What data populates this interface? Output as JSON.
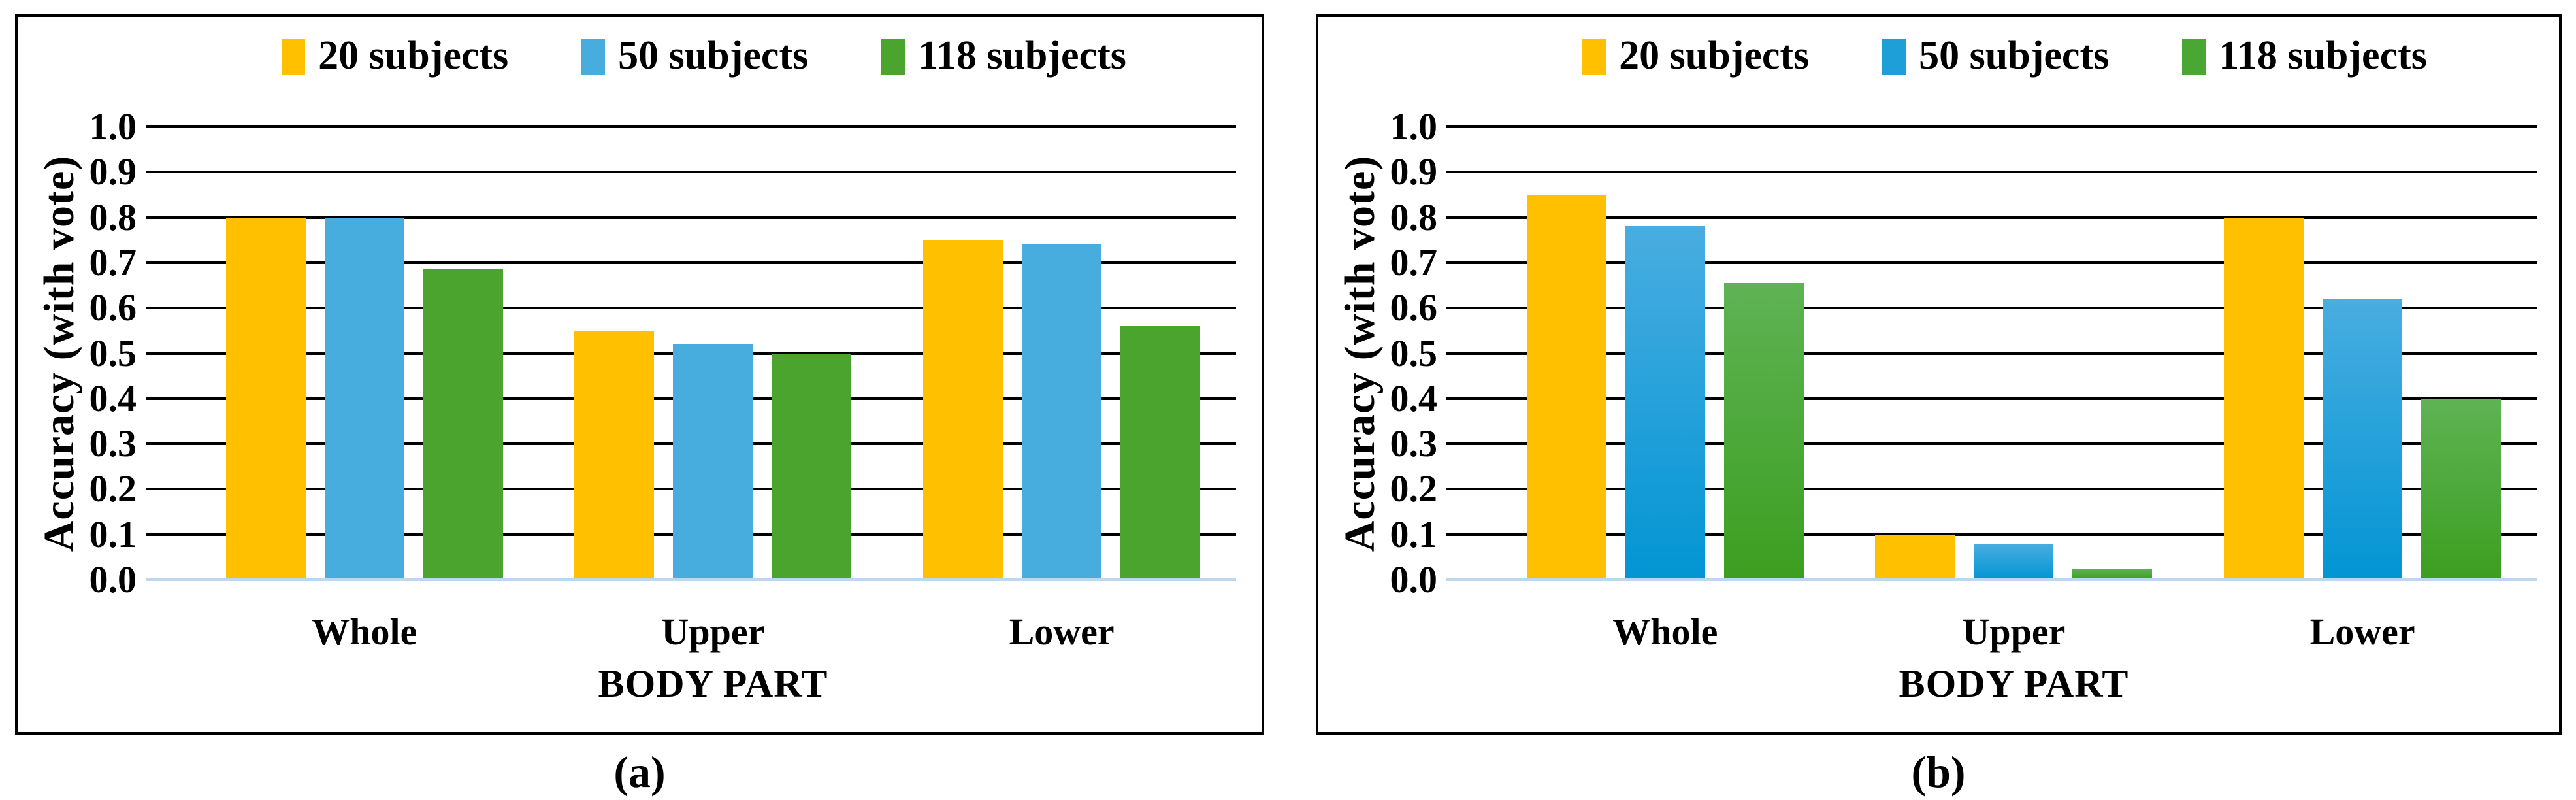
{
  "figure": {
    "panels": [
      {
        "id": "a",
        "caption": "(a)"
      },
      {
        "id": "b",
        "caption": "(b)"
      }
    ]
  },
  "chart_data": [
    {
      "type": "bar",
      "panel": "a",
      "title": "",
      "categories": [
        "Whole",
        "Upper",
        "Lower"
      ],
      "series": [
        {
          "name": "20 subjects",
          "color": "#FFC000",
          "legend_color": "#FFC000",
          "values": [
            0.8,
            0.55,
            0.75
          ]
        },
        {
          "name": "50 subjects",
          "color": "#47ADDF",
          "legend_color": "#47ADDF",
          "values": [
            0.8,
            0.52,
            0.74
          ]
        },
        {
          "name": "118 subjects",
          "color": "#4BA42E",
          "legend_color": "#4BA42E",
          "values": [
            0.685,
            0.5,
            0.56
          ]
        }
      ],
      "xlabel": "BODY PART",
      "ylabel": "Accuracy (with vote)",
      "ylim": [
        0.0,
        1.0
      ],
      "ytick_step": 0.1,
      "yticks": [
        "1.0",
        "0.9",
        "0.8",
        "0.7",
        "0.6",
        "0.5",
        "0.4",
        "0.3",
        "0.2",
        "0.1",
        "0.0"
      ],
      "grid": true,
      "legend_position": "top",
      "baseline_color": "#BDD7EE",
      "gridline_color": "#000000"
    },
    {
      "type": "bar",
      "panel": "b",
      "title": "",
      "categories": [
        "Whole",
        "Upper",
        "Lower"
      ],
      "series": [
        {
          "name": "20 subjects",
          "color": "#FFC000",
          "legend_color": "#FFC000",
          "values": [
            0.85,
            0.1,
            0.8
          ]
        },
        {
          "name": "50 subjects",
          "gradient": [
            "#49ADE0",
            "#0295D4"
          ],
          "legend_color": "#1E9FD8",
          "values": [
            0.78,
            0.08,
            0.62
          ]
        },
        {
          "name": "118 subjects",
          "gradient": [
            "#5FB354",
            "#3C9E20"
          ],
          "legend_color": "#4AA733",
          "values": [
            0.655,
            0.025,
            0.4
          ]
        }
      ],
      "xlabel": "BODY PART",
      "ylabel": "Accuracy (with vote)",
      "ylim": [
        0.0,
        1.0
      ],
      "ytick_step": 0.1,
      "yticks": [
        "1.0",
        "0.9",
        "0.8",
        "0.7",
        "0.6",
        "0.5",
        "0.4",
        "0.3",
        "0.2",
        "0.1",
        "0.0"
      ],
      "grid": true,
      "legend_position": "top",
      "baseline_color": "#BDD7EE",
      "gridline_color": "#000000"
    }
  ]
}
